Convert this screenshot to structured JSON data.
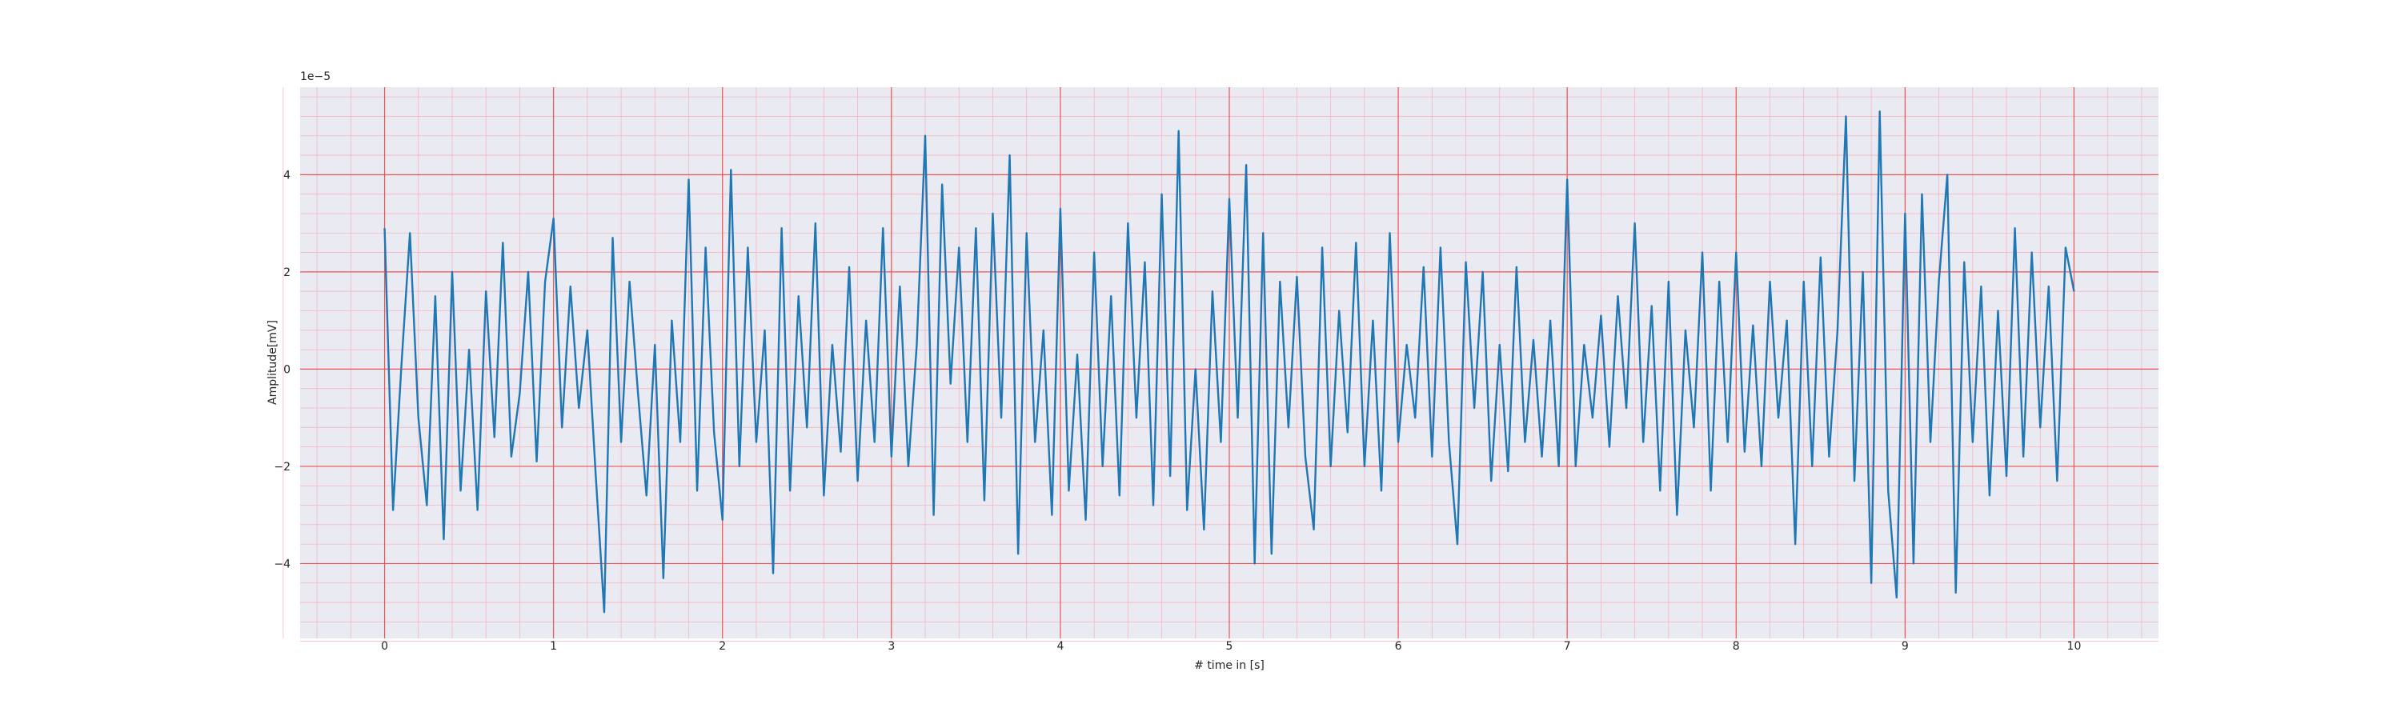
{
  "chart_data": {
    "type": "line",
    "xlabel": "# time in [s]",
    "ylabel": "Amplitude[mV]",
    "y_offset_label": "1e−5",
    "color": "#1f77b4",
    "grid": true,
    "xlim": [
      -0.5,
      10.5
    ],
    "ylim": [
      -5.54e-05,
      5.8e-05
    ],
    "xticks": [
      0,
      1,
      2,
      3,
      4,
      5,
      6,
      7,
      8,
      9,
      10
    ],
    "yticks": [
      {
        "value": -4e-05,
        "label": "−4"
      },
      {
        "value": -2e-05,
        "label": "−2"
      },
      {
        "value": 0,
        "label": "0"
      },
      {
        "value": 2e-05,
        "label": "2"
      },
      {
        "value": 4e-05,
        "label": "4"
      }
    ],
    "x": [
      0,
      0.05,
      0.1,
      0.15,
      0.2,
      0.25,
      0.3,
      0.35,
      0.4,
      0.45,
      0.5,
      0.55,
      0.6,
      0.65,
      0.7,
      0.75,
      0.8,
      0.85,
      0.9,
      0.95,
      1,
      1.05,
      1.1,
      1.15,
      1.2,
      1.25,
      1.3,
      1.35,
      1.4,
      1.45,
      1.5,
      1.55,
      1.6,
      1.65,
      1.7,
      1.75,
      1.8,
      1.85,
      1.9,
      1.95,
      2,
      2.05,
      2.1,
      2.15,
      2.2,
      2.25,
      2.3,
      2.35,
      2.4,
      2.45,
      2.5,
      2.55,
      2.6,
      2.65,
      2.7,
      2.75,
      2.8,
      2.85,
      2.9,
      2.95,
      3,
      3.05,
      3.1,
      3.15,
      3.2,
      3.25,
      3.3,
      3.35,
      3.4,
      3.45,
      3.5,
      3.55,
      3.6,
      3.65,
      3.7,
      3.75,
      3.8,
      3.85,
      3.9,
      3.95,
      4,
      4.05,
      4.1,
      4.15,
      4.2,
      4.25,
      4.3,
      4.35,
      4.4,
      4.45,
      4.5,
      4.55,
      4.6,
      4.65,
      4.7,
      4.75,
      4.8,
      4.85,
      4.9,
      4.95,
      5,
      5.05,
      5.1,
      5.15,
      5.2,
      5.25,
      5.3,
      5.35,
      5.4,
      5.45,
      5.5,
      5.55,
      5.6,
      5.65,
      5.7,
      5.75,
      5.8,
      5.85,
      5.9,
      5.95,
      6,
      6.05,
      6.1,
      6.15,
      6.2,
      6.25,
      6.3,
      6.35,
      6.4,
      6.45,
      6.5,
      6.55,
      6.6,
      6.65,
      6.7,
      6.75,
      6.8,
      6.85,
      6.9,
      6.95,
      7,
      7.05,
      7.1,
      7.15,
      7.2,
      7.25,
      7.3,
      7.35,
      7.4,
      7.45,
      7.5,
      7.55,
      7.6,
      7.65,
      7.7,
      7.75,
      7.8,
      7.85,
      7.9,
      7.95,
      8,
      8.05,
      8.1,
      8.15,
      8.2,
      8.25,
      8.3,
      8.35,
      8.4,
      8.45,
      8.5,
      8.55,
      8.6,
      8.65,
      8.7,
      8.75,
      8.8,
      8.85,
      8.9,
      8.95,
      9,
      9.05,
      9.1,
      9.15,
      9.2,
      9.25,
      9.3,
      9.35,
      9.4,
      9.45,
      9.5,
      9.55,
      9.6,
      9.65,
      9.7,
      9.75,
      9.8,
      9.85,
      9.9,
      9.95,
      10
    ],
    "values": [
      2.9e-05,
      -2.9e-05,
      1e-06,
      2.8e-05,
      -1e-05,
      -2.8e-05,
      1.5e-05,
      -3.5e-05,
      2e-05,
      -2.5e-05,
      4e-06,
      -2.9e-05,
      1.6e-05,
      -1.4e-05,
      2.6e-05,
      -1.8e-05,
      -5e-06,
      2e-05,
      -1.9e-05,
      1.8e-05,
      3.1e-05,
      -1.2e-05,
      1.7e-05,
      -8e-06,
      8e-06,
      -2.2e-05,
      -5e-05,
      2.7e-05,
      -1.5e-05,
      1.8e-05,
      -5e-06,
      -2.6e-05,
      5e-06,
      -4.3e-05,
      1e-05,
      -1.5e-05,
      3.9e-05,
      -2.5e-05,
      2.5e-05,
      -1.3e-05,
      -3.1e-05,
      4.1e-05,
      -2e-05,
      2.5e-05,
      -1.5e-05,
      8e-06,
      -4.2e-05,
      2.9e-05,
      -2.5e-05,
      1.5e-05,
      -1.2e-05,
      3e-05,
      -2.6e-05,
      5e-06,
      -1.7e-05,
      2.1e-05,
      -2.3e-05,
      1e-05,
      -1.5e-05,
      2.9e-05,
      -1.8e-05,
      1.7e-05,
      -2e-05,
      5e-06,
      4.8e-05,
      -3e-05,
      3.8e-05,
      -3e-06,
      2.5e-05,
      -1.5e-05,
      2.9e-05,
      -2.7e-05,
      3.2e-05,
      -1e-05,
      4.4e-05,
      -3.8e-05,
      2.8e-05,
      -1.5e-05,
      8e-06,
      -3e-05,
      3.3e-05,
      -2.5e-05,
      3e-06,
      -3.1e-05,
      2.4e-05,
      -2e-05,
      1.5e-05,
      -2.6e-05,
      3e-05,
      -1e-05,
      2.2e-05,
      -2.8e-05,
      3.6e-05,
      -2.2e-05,
      4.9e-05,
      -2.9e-05,
      0.0,
      -3.3e-05,
      1.6e-05,
      -1.5e-05,
      3.5e-05,
      -1e-05,
      4.2e-05,
      -4e-05,
      2.8e-05,
      -3.8e-05,
      1.8e-05,
      -1.2e-05,
      1.9e-05,
      -1.8e-05,
      -3.3e-05,
      2.5e-05,
      -2e-05,
      1.2e-05,
      -1.3e-05,
      2.6e-05,
      -2e-05,
      1e-05,
      -2.5e-05,
      2.8e-05,
      -1.5e-05,
      5e-06,
      -1e-05,
      2.1e-05,
      -1.8e-05,
      2.5e-05,
      -1.5e-05,
      -3.6e-05,
      2.2e-05,
      -8e-06,
      2e-05,
      -2.3e-05,
      5e-06,
      -2.1e-05,
      2.1e-05,
      -1.5e-05,
      6e-06,
      -1.8e-05,
      1e-05,
      -2e-05,
      3.9e-05,
      -2e-05,
      5e-06,
      -1e-05,
      1.1e-05,
      -1.6e-05,
      1.5e-05,
      -8e-06,
      3e-05,
      -1.5e-05,
      1.3e-05,
      -2.5e-05,
      1.8e-05,
      -3e-05,
      8e-06,
      -1.2e-05,
      2.4e-05,
      -2.5e-05,
      1.8e-05,
      -1.5e-05,
      2.4e-05,
      -1.7e-05,
      9e-06,
      -2e-05,
      1.8e-05,
      -1e-05,
      1e-05,
      -3.6e-05,
      1.8e-05,
      -2e-05,
      2.3e-05,
      -1.8e-05,
      8e-06,
      5.2e-05,
      -2.3e-05,
      2e-05,
      -4.4e-05,
      5.3e-05,
      -2.5e-05,
      -4.7e-05,
      3.2e-05,
      -4e-05,
      3.6e-05,
      -1.5e-05,
      1.8e-05,
      4e-05,
      -4.6e-05,
      2.2e-05,
      -1.5e-05,
      1.7e-05,
      -2.6e-05,
      1.2e-05,
      -2.2e-05,
      2.9e-05,
      -1.8e-05,
      2.4e-05,
      -1.2e-05,
      1.7e-05,
      -2.3e-05,
      2.5e-05,
      1.6e-05
    ]
  }
}
